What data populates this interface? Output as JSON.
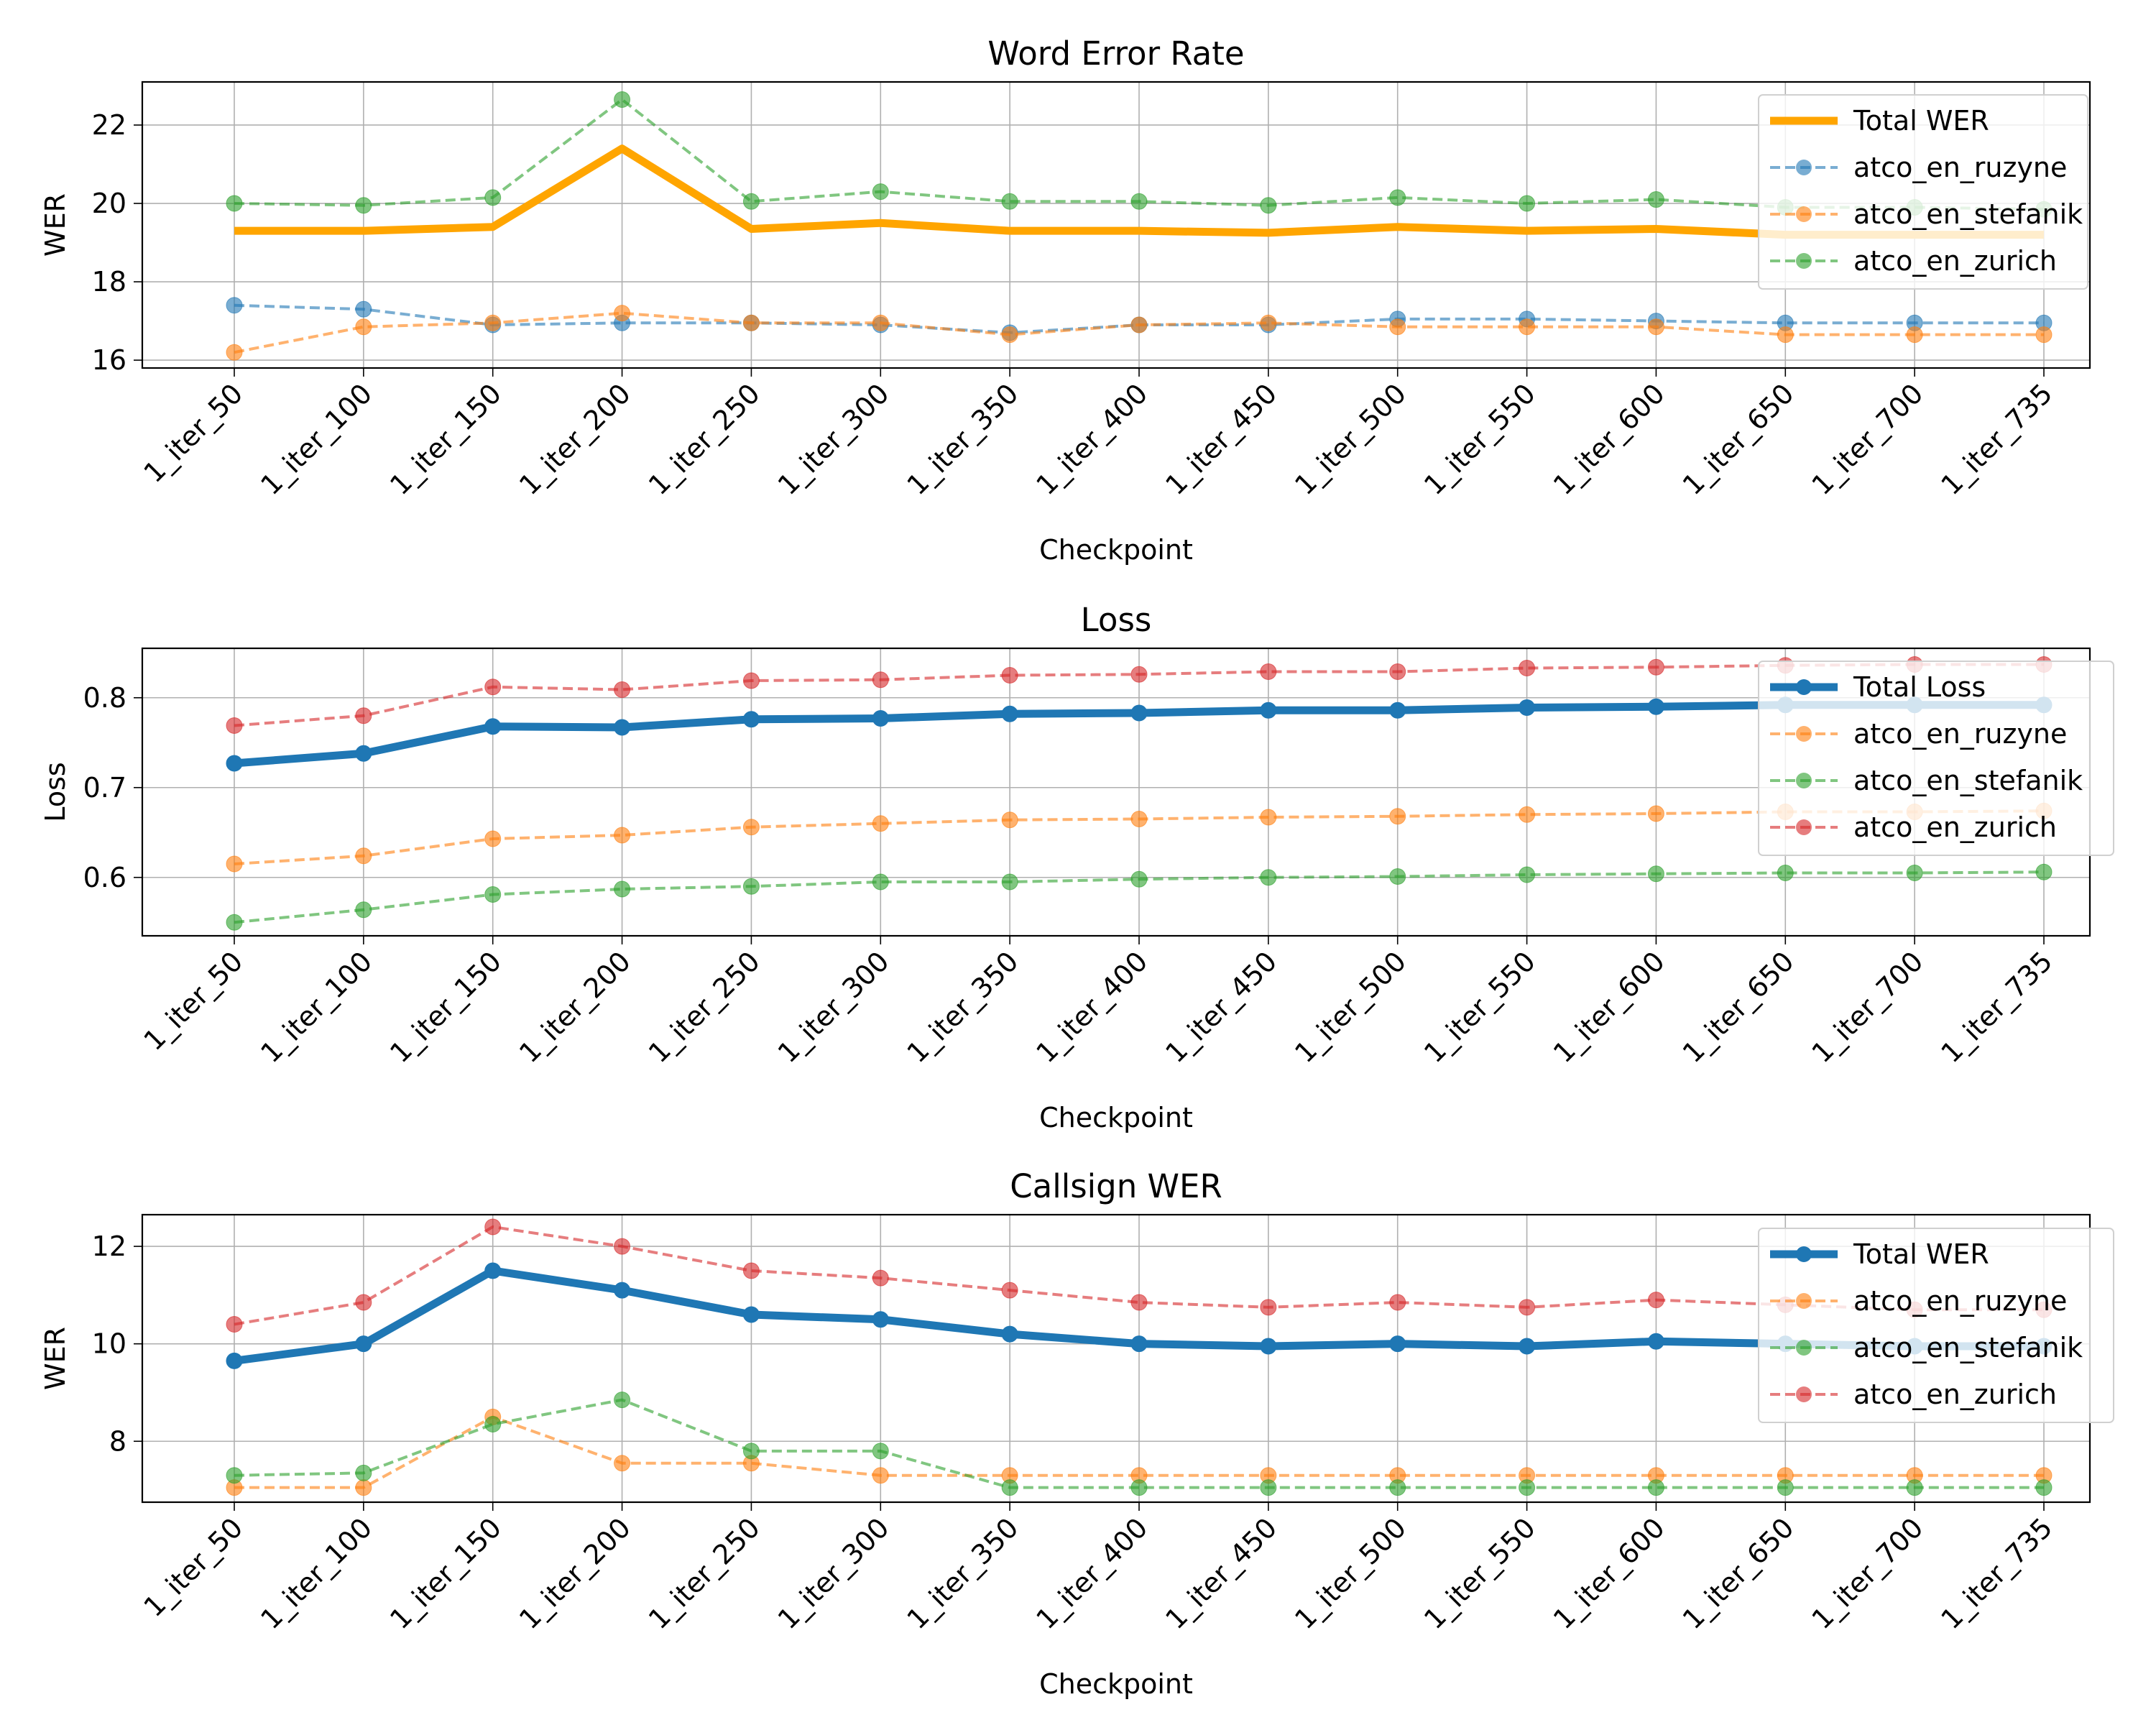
{
  "chart_data": [
    {
      "type": "line",
      "title": "Word Error Rate",
      "xlabel": "Checkpoint",
      "ylabel": "WER",
      "categories": [
        "1_iter_50",
        "1_iter_100",
        "1_iter_150",
        "1_iter_200",
        "1_iter_250",
        "1_iter_300",
        "1_iter_350",
        "1_iter_400",
        "1_iter_450",
        "1_iter_500",
        "1_iter_550",
        "1_iter_600",
        "1_iter_650",
        "1_iter_700",
        "1_iter_735"
      ],
      "ylim": [
        15.8,
        23.1
      ],
      "yticks": [
        "16",
        "18",
        "20",
        "22"
      ],
      "grid": true,
      "legend_position": "top-right",
      "series": [
        {
          "name": "Total WER",
          "color": "#ffa500",
          "style": "solid",
          "markers": false,
          "values": [
            19.3,
            19.3,
            19.4,
            21.4,
            19.35,
            19.5,
            19.3,
            19.3,
            19.25,
            19.4,
            19.3,
            19.35,
            19.2,
            19.2,
            19.2
          ]
        },
        {
          "name": "atco_en_ruzyne",
          "color": "#1f77b4",
          "style": "dashed",
          "markers": true,
          "values": [
            17.4,
            17.3,
            16.9,
            16.95,
            16.95,
            16.9,
            16.7,
            16.9,
            16.9,
            17.05,
            17.05,
            17.0,
            16.95,
            16.95,
            16.95
          ]
        },
        {
          "name": "atco_en_stefanik",
          "color": "#ff7f0e",
          "style": "dashed",
          "markers": true,
          "values": [
            16.2,
            16.85,
            16.95,
            17.2,
            16.95,
            16.95,
            16.65,
            16.9,
            16.95,
            16.85,
            16.85,
            16.85,
            16.65,
            16.65,
            16.65
          ]
        },
        {
          "name": "atco_en_zurich",
          "color": "#2ca02c",
          "style": "dashed",
          "markers": true,
          "values": [
            20.0,
            19.95,
            20.15,
            22.65,
            20.05,
            20.3,
            20.05,
            20.05,
            19.95,
            20.15,
            20.0,
            20.1,
            19.9,
            19.9,
            19.85
          ]
        }
      ]
    },
    {
      "type": "line",
      "title": "Loss",
      "xlabel": "Checkpoint",
      "ylabel": "Loss",
      "categories": [
        "1_iter_50",
        "1_iter_100",
        "1_iter_150",
        "1_iter_200",
        "1_iter_250",
        "1_iter_300",
        "1_iter_350",
        "1_iter_400",
        "1_iter_450",
        "1_iter_500",
        "1_iter_550",
        "1_iter_600",
        "1_iter_650",
        "1_iter_700",
        "1_iter_735"
      ],
      "ylim": [
        0.535,
        0.855
      ],
      "yticks": [
        "0.6",
        "0.7",
        "0.8"
      ],
      "grid": true,
      "legend_position": "top-right",
      "series": [
        {
          "name": "Total Loss",
          "color": "#1f77b4",
          "style": "solid",
          "markers": true,
          "values": [
            0.727,
            0.738,
            0.768,
            0.767,
            0.776,
            0.777,
            0.782,
            0.783,
            0.786,
            0.786,
            0.789,
            0.79,
            0.792,
            0.792,
            0.792
          ]
        },
        {
          "name": "atco_en_ruzyne",
          "color": "#ff7f0e",
          "style": "dashed",
          "markers": true,
          "values": [
            0.615,
            0.624,
            0.643,
            0.647,
            0.656,
            0.66,
            0.664,
            0.665,
            0.667,
            0.668,
            0.67,
            0.671,
            0.673,
            0.673,
            0.674
          ]
        },
        {
          "name": "atco_en_stefanik",
          "color": "#2ca02c",
          "style": "dashed",
          "markers": true,
          "values": [
            0.55,
            0.564,
            0.581,
            0.587,
            0.59,
            0.595,
            0.595,
            0.598,
            0.6,
            0.601,
            0.603,
            0.604,
            0.605,
            0.605,
            0.606
          ]
        },
        {
          "name": "atco_en_zurich",
          "color": "#d62728",
          "style": "dashed",
          "markers": true,
          "values": [
            0.769,
            0.78,
            0.812,
            0.809,
            0.819,
            0.82,
            0.825,
            0.826,
            0.829,
            0.829,
            0.833,
            0.834,
            0.836,
            0.837,
            0.837
          ]
        }
      ]
    },
    {
      "type": "line",
      "title": "Callsign WER",
      "xlabel": "Checkpoint",
      "ylabel": "WER",
      "categories": [
        "1_iter_50",
        "1_iter_100",
        "1_iter_150",
        "1_iter_200",
        "1_iter_250",
        "1_iter_300",
        "1_iter_350",
        "1_iter_400",
        "1_iter_450",
        "1_iter_500",
        "1_iter_550",
        "1_iter_600",
        "1_iter_650",
        "1_iter_700",
        "1_iter_735"
      ],
      "ylim": [
        6.75,
        12.65
      ],
      "yticks": [
        "8",
        "10",
        "12"
      ],
      "grid": true,
      "legend_position": "top-right",
      "series": [
        {
          "name": "Total WER",
          "color": "#1f77b4",
          "style": "solid",
          "markers": true,
          "values": [
            9.65,
            10.0,
            11.5,
            11.1,
            10.6,
            10.5,
            10.2,
            10.0,
            9.95,
            10.0,
            9.95,
            10.05,
            10.0,
            9.95,
            9.95
          ]
        },
        {
          "name": "atco_en_ruzyne",
          "color": "#ff7f0e",
          "style": "dashed",
          "markers": true,
          "values": [
            7.05,
            7.05,
            8.5,
            7.55,
            7.55,
            7.3,
            7.3,
            7.3,
            7.3,
            7.3,
            7.3,
            7.3,
            7.3,
            7.3,
            7.3
          ]
        },
        {
          "name": "atco_en_stefanik",
          "color": "#2ca02c",
          "style": "dashed",
          "markers": true,
          "values": [
            7.3,
            7.35,
            8.35,
            8.85,
            7.8,
            7.8,
            7.05,
            7.05,
            7.05,
            7.05,
            7.05,
            7.05,
            7.05,
            7.05,
            7.05
          ]
        },
        {
          "name": "atco_en_zurich",
          "color": "#d62728",
          "style": "dashed",
          "markers": true,
          "values": [
            10.4,
            10.85,
            12.4,
            12.0,
            11.5,
            11.35,
            11.1,
            10.85,
            10.75,
            10.85,
            10.75,
            10.9,
            10.8,
            10.7,
            10.7
          ]
        }
      ]
    }
  ]
}
